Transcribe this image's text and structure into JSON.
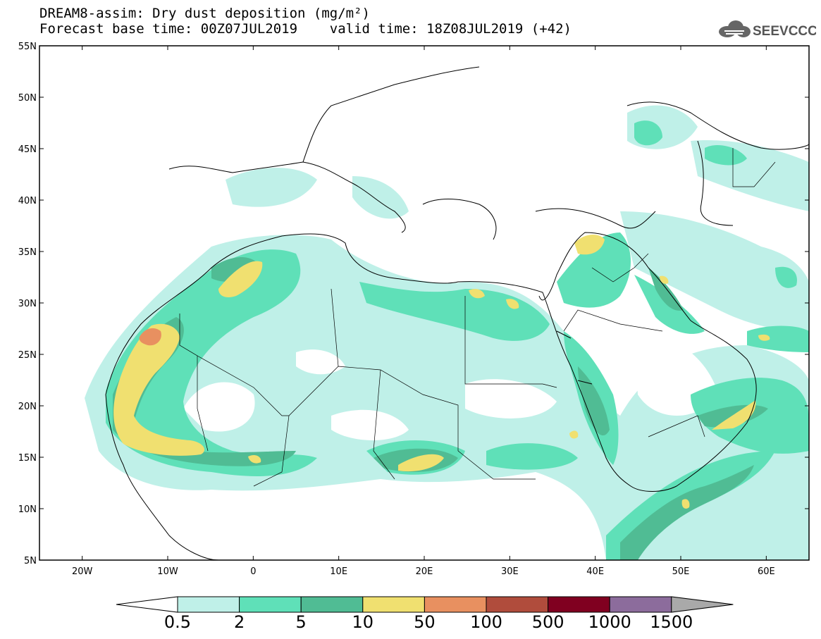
{
  "header": {
    "title_line1": "DREAM8-assim: Dry dust deposition (mg/m²)",
    "title_line2": "Forecast base time: 00Z07JUL2019    valid time: 18Z08JUL2019 (+42)",
    "logo_text": "SEEVCCC",
    "logo_icon": "cloud-icon"
  },
  "map": {
    "lon_range": [
      -25,
      65
    ],
    "lat_range": [
      5,
      55
    ],
    "lat_labels": [
      {
        "lat": 55,
        "label": "55N"
      },
      {
        "lat": 50,
        "label": "50N"
      },
      {
        "lat": 45,
        "label": "45N"
      },
      {
        "lat": 40,
        "label": "40N"
      },
      {
        "lat": 35,
        "label": "35N"
      },
      {
        "lat": 30,
        "label": "30N"
      },
      {
        "lat": 25,
        "label": "25N"
      },
      {
        "lat": 20,
        "label": "20N"
      },
      {
        "lat": 15,
        "label": "15N"
      },
      {
        "lat": 10,
        "label": "10N"
      },
      {
        "lat": 5,
        "label": "5N"
      }
    ],
    "lon_labels": [
      {
        "lon": -20,
        "label": "20W"
      },
      {
        "lon": -10,
        "label": "10W"
      },
      {
        "lon": 0,
        "label": "0"
      },
      {
        "lon": 10,
        "label": "10E"
      },
      {
        "lon": 20,
        "label": "20E"
      },
      {
        "lon": 30,
        "label": "30E"
      },
      {
        "lon": 40,
        "label": "40E"
      },
      {
        "lon": 50,
        "label": "50E"
      },
      {
        "lon": 60,
        "label": "60E"
      }
    ]
  },
  "colorbar": {
    "lower_arrow_color": "#ffffff",
    "upper_arrow_color": "#a9a9a9",
    "bins": [
      {
        "color": "#bff0e8",
        "label": "0.5"
      },
      {
        "color": "#5fe0b8",
        "label": "2"
      },
      {
        "color": "#50bc94",
        "label": "5"
      },
      {
        "color": "#f0e070",
        "label": "10"
      },
      {
        "color": "#e89060",
        "label": "50"
      },
      {
        "color": "#b04c3c",
        "label": "100"
      },
      {
        "color": "#800020",
        "label": "500"
      },
      {
        "color": "#8c6c9c",
        "label": "1000"
      },
      {
        "color": "#a9a9a9",
        "label": "1500"
      }
    ]
  }
}
